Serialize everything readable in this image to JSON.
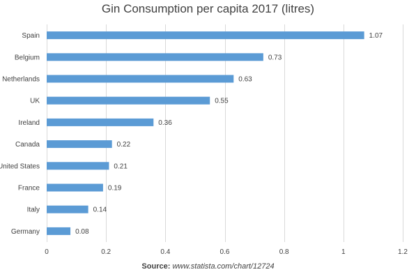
{
  "chart_data": {
    "type": "bar",
    "orientation": "horizontal",
    "title": "Gin Consumption per capita 2017 (litres)",
    "categories": [
      "Spain",
      "Belgium",
      "Netherlands",
      "UK",
      "Ireland",
      "Canada",
      "United States",
      "France",
      "Italy",
      "Germany"
    ],
    "values": [
      1.07,
      0.73,
      0.63,
      0.55,
      0.36,
      0.22,
      0.21,
      0.19,
      0.14,
      0.08
    ],
    "value_labels": [
      "1.07",
      "0.73",
      "0.63",
      "0.55",
      "0.36",
      "0.22",
      "0.21",
      "0.19",
      "0.14",
      "0.08"
    ],
    "xlim": [
      0,
      1.2
    ],
    "xticks": [
      0,
      0.2,
      0.4,
      0.6,
      0.8,
      1,
      1.2
    ],
    "xtick_labels": [
      "0",
      "0.2",
      "0.4",
      "0.6",
      "0.8",
      "1",
      "1.2"
    ],
    "xlabel": "",
    "ylabel": "",
    "grid": "vertical",
    "legend": "none",
    "colors": {
      "bar": "#5B9BD5",
      "grid": "#D9D9D9",
      "text": "#404040"
    }
  },
  "source": {
    "label": "Source:",
    "url": "www.statista.com/chart/12724"
  }
}
